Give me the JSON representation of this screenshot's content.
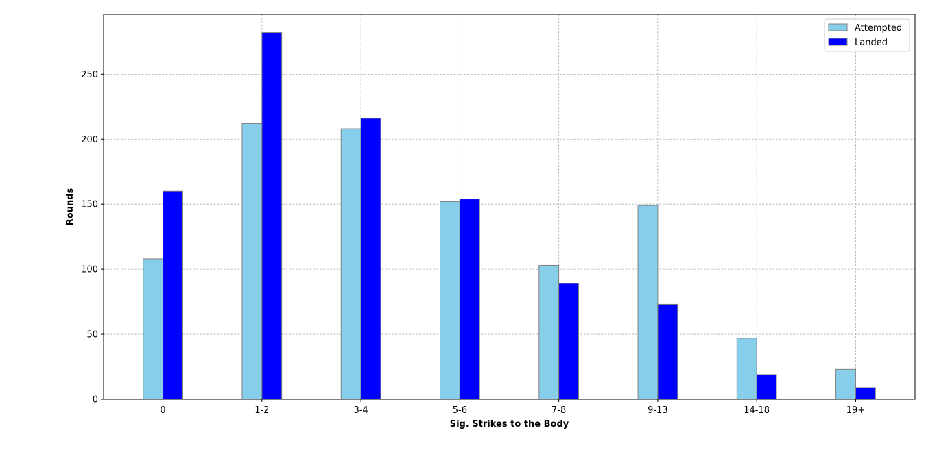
{
  "chart_data": {
    "type": "bar",
    "title": "",
    "xlabel": "Sig. Strikes to the Body",
    "ylabel": "Rounds",
    "categories": [
      "0",
      "1-2",
      "3-4",
      "5-6",
      "7-8",
      "9-13",
      "14-18",
      "19+"
    ],
    "series": [
      {
        "name": "Attempted",
        "color": "#87ceeb",
        "values": [
          108,
          212,
          208,
          152,
          103,
          149,
          47,
          23
        ]
      },
      {
        "name": "Landed",
        "color": "#0000ff",
        "values": [
          160,
          282,
          216,
          154,
          89,
          73,
          19,
          9
        ]
      }
    ],
    "ylim": [
      0,
      296
    ],
    "yticks": [
      0,
      50,
      100,
      150,
      200,
      250
    ],
    "grid": true,
    "legend_position": "top-right",
    "bar_edge_color": "#808080"
  }
}
